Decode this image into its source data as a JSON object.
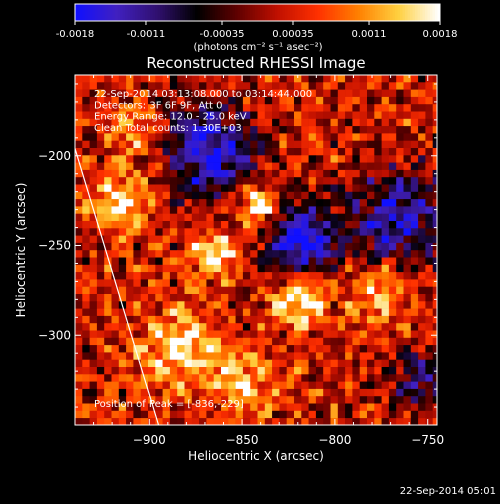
{
  "colors": {
    "background": "#000000",
    "foreground": "#ffffff",
    "colormap": [
      "#1010ff",
      "#4020c0",
      "#301070",
      "#000000",
      "#600000",
      "#c01000",
      "#ff3000",
      "#ff8000",
      "#ffd040",
      "#ffffff"
    ]
  },
  "colorbar": {
    "tick_labels": [
      "-0.0018",
      "-0.0011",
      "-0.00035",
      "0.00035",
      "0.0011",
      "0.0018"
    ],
    "tick_values": [
      -0.0018,
      -0.0011,
      -0.00035,
      0.00035,
      0.0011,
      0.0018
    ],
    "range": [
      -0.0018,
      0.0018
    ],
    "unit_label": "(photons cm⁻² s⁻¹ asec⁻²)"
  },
  "chart_data": {
    "type": "heatmap",
    "title": "Reconstructed RHESSI Image",
    "xlabel": "Heliocentric X (arcsec)",
    "ylabel": "Heliocentric Y (arcsec)",
    "xlim": [
      -940,
      -745
    ],
    "ylim": [
      -350,
      -155
    ],
    "x_ticks": [
      -900,
      -850,
      -800,
      -750
    ],
    "x_tick_labels": [
      "−900",
      "−850",
      "−800",
      "−750"
    ],
    "y_ticks": [
      -200,
      -250,
      -300
    ],
    "y_tick_labels": [
      "−200",
      "−250",
      "−300"
    ],
    "limb_line": {
      "x": [
        -940,
        -895
      ],
      "y": [
        -196,
        -350
      ]
    },
    "info_lines": [
      "22-Sep-2014 03:13:08.000 to 03:14:44.000",
      "Detectors: 3F 6F 9F, Att 0",
      "Energy Range: 12.0 - 25.0 keV",
      "Clean     Total counts: 1.30E+03"
    ],
    "peak_label": "Position of Peak = [-836,-229]"
  },
  "timestamp": "22-Sep-2014 05:01"
}
